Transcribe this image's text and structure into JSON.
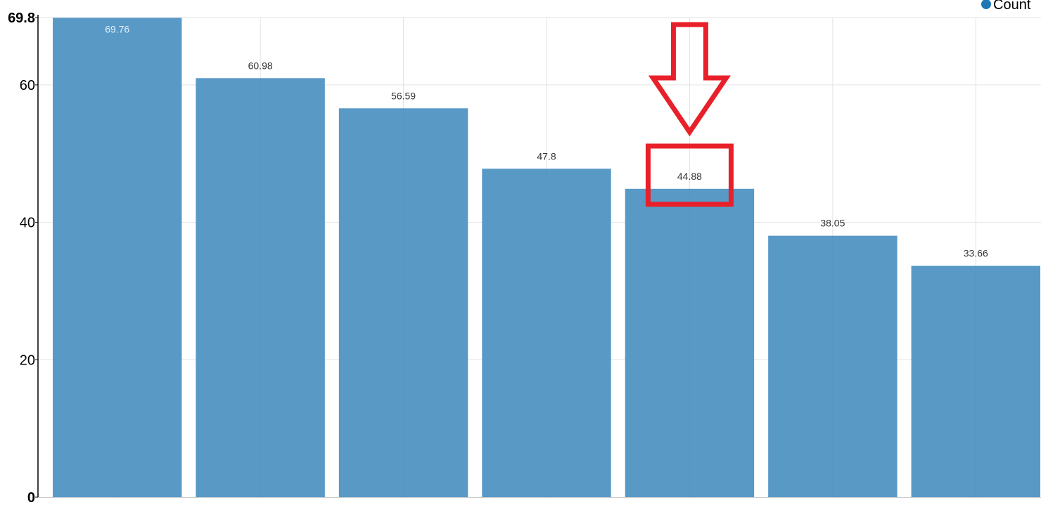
{
  "chart_data": {
    "type": "bar",
    "categories": [
      "",
      "",
      "",
      "",
      "",
      "",
      ""
    ],
    "series": [
      {
        "name": "Count",
        "values": [
          69.76,
          60.98,
          56.59,
          47.8,
          44.88,
          38.05,
          33.66
        ]
      }
    ],
    "data_labels": [
      "69.76",
      "60.98",
      "56.59",
      "47.8",
      "44.88",
      "38.05",
      "33.66"
    ],
    "ylim": [
      0,
      69.8
    ],
    "y_ticks": [
      {
        "value": 0,
        "label": "0",
        "bold": true
      },
      {
        "value": 20,
        "label": "20",
        "bold": false
      },
      {
        "value": 40,
        "label": "40",
        "bold": false
      },
      {
        "value": 60,
        "label": "60",
        "bold": false
      },
      {
        "value": 69.8,
        "label": "69.8",
        "bold": true
      }
    ],
    "grid": true,
    "legend": {
      "position": "top-right",
      "label": "Count"
    },
    "colors": {
      "bar": "#5899c6",
      "legend_dot": "#1f77b4",
      "grid": "#e3e3e3",
      "axis": "#000000",
      "annotation": "#e8202a",
      "first_label": "#e8f0f8"
    },
    "annotation": {
      "highlighted_index": 4,
      "shape": "red-arrow-and-box"
    }
  }
}
